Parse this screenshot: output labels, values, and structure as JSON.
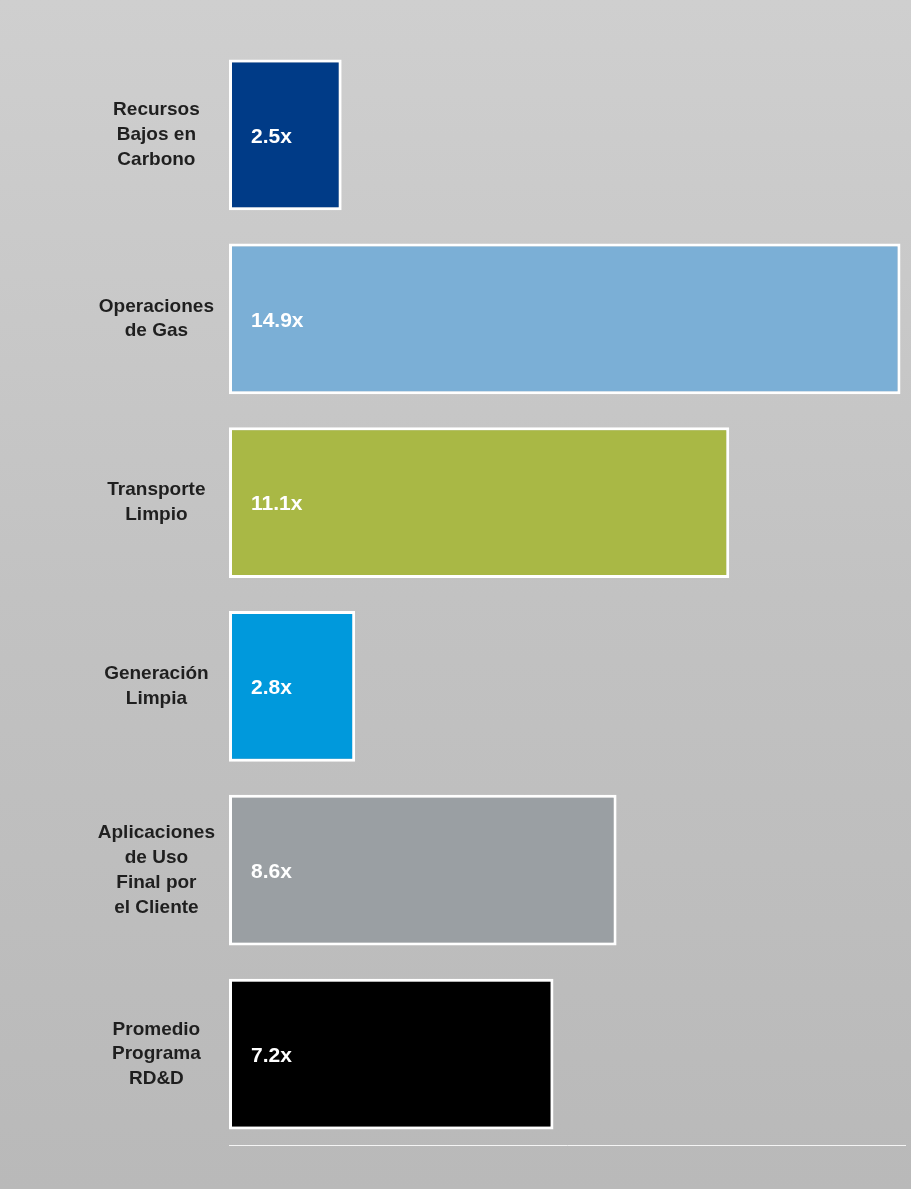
{
  "chart_data": {
    "type": "bar",
    "orientation": "horizontal",
    "categories": [
      "Recursos Bajos en Carbono",
      "Operaciones de Gas",
      "Transporte Limpio",
      "Generación Limpia",
      "Aplicaciones de Uso Final por el Cliente",
      "Promedio Programa RD&D"
    ],
    "values": [
      2.5,
      14.9,
      11.1,
      2.8,
      8.6,
      7.2
    ],
    "value_labels": [
      "2.5x",
      "14.9x",
      "11.1x",
      "2.8x",
      "8.6x",
      "7.2x"
    ],
    "colors": [
      "#003b87",
      "#7bafd6",
      "#a9b845",
      "#0099dc",
      "#9a9fa3",
      "#000000"
    ],
    "data_labels": true,
    "xlim": [
      0,
      15
    ],
    "grid": false,
    "tick_labels": "y"
  }
}
